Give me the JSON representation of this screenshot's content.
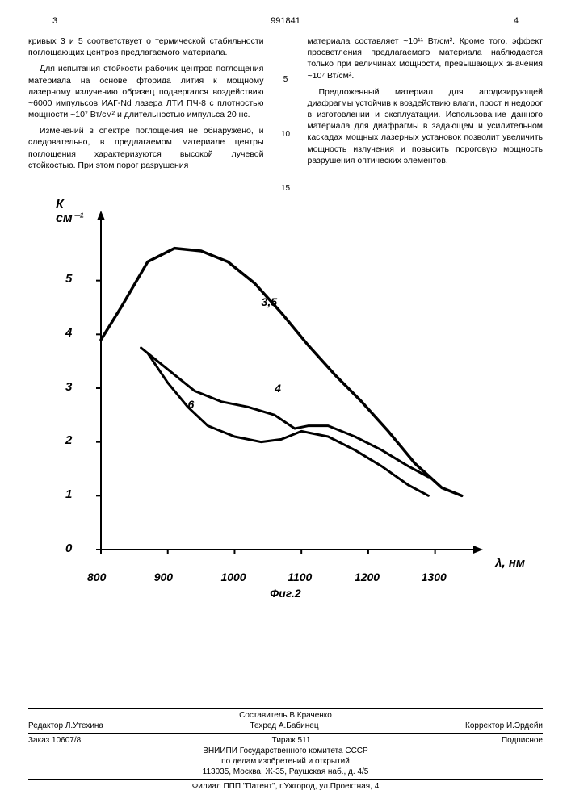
{
  "header": {
    "page_left": "3",
    "doc_num": "991841",
    "page_right": "4"
  },
  "left_col": {
    "p1": "кривых 3 и 5 соответствует о термической стабильности поглощающих центров предлагаемого материала.",
    "p2": "Для испытания стойкости рабочих центров поглощения материала на основе фторида лития к мощному лазерному излучению образец подвергался воздействию ~6000 импульсов ИАГ-Nd лазера ЛТИ ПЧ-8 с плотностью мощности ~10⁷ Вт/см² и длительностью импульса 20 нс.",
    "p3": "Изменений в спектре поглощения не обнаружено, и следовательно, в предлагаемом материале центры поглощения характеризуются высокой лучевой стойкостью. При этом порог разрушения"
  },
  "right_col": {
    "p1": "материала составляет ~10¹¹ Вт/см². Кроме того, эффект просветления предлагаемого материала наблюдается только при величинах мощности, превышающих значения ~10⁷ Вт/см².",
    "p2": "Предложенный материал для аподизирующей диафрагмы устойчив к воздействию влаги, прост и недорог в изготовлении и эксплуатации. Использование данного материала для диафрагмы в задающем и усилительном каскадах мощных лазерных установок позволит увеличить мощность излучения и повысить пороговую мощность разрушения оптических элементов."
  },
  "line_nums": [
    "5",
    "10",
    "15"
  ],
  "chart": {
    "type": "line",
    "xlim": [
      800,
      1350
    ],
    "ylim": [
      0,
      6
    ],
    "xticks": [
      800,
      900,
      1000,
      1100,
      1200,
      1300
    ],
    "yticks": [
      0,
      1,
      2,
      3,
      4,
      5
    ],
    "ylabel_top": "К",
    "ylabel_bot": "см⁻¹",
    "xlabel": "λ, нм",
    "caption": "Фиг.2",
    "line_color": "#000000",
    "line_width_main": 3.5,
    "line_width_sub": 3,
    "background_color": "#ffffff",
    "series": [
      {
        "label": "3,5",
        "label_x": 1040,
        "label_y": 4.6,
        "points": [
          [
            800,
            3.9
          ],
          [
            830,
            4.5
          ],
          [
            870,
            5.35
          ],
          [
            910,
            5.6
          ],
          [
            950,
            5.55
          ],
          [
            990,
            5.35
          ],
          [
            1030,
            4.95
          ],
          [
            1070,
            4.4
          ],
          [
            1110,
            3.8
          ],
          [
            1150,
            3.25
          ],
          [
            1190,
            2.75
          ],
          [
            1230,
            2.2
          ],
          [
            1270,
            1.6
          ],
          [
            1310,
            1.15
          ],
          [
            1340,
            1.0
          ]
        ]
      },
      {
        "label": "4",
        "label_x": 1060,
        "label_y": 3.0,
        "points": [
          [
            860,
            3.75
          ],
          [
            900,
            3.35
          ],
          [
            940,
            2.95
          ],
          [
            980,
            2.75
          ],
          [
            1020,
            2.65
          ],
          [
            1060,
            2.5
          ],
          [
            1090,
            2.25
          ],
          [
            1110,
            2.3
          ],
          [
            1140,
            2.3
          ],
          [
            1180,
            2.1
          ],
          [
            1220,
            1.85
          ],
          [
            1260,
            1.55
          ],
          [
            1290,
            1.35
          ]
        ]
      },
      {
        "label": "6",
        "label_x": 930,
        "label_y": 2.7,
        "points": [
          [
            870,
            3.65
          ],
          [
            900,
            3.1
          ],
          [
            930,
            2.65
          ],
          [
            960,
            2.3
          ],
          [
            1000,
            2.1
          ],
          [
            1040,
            2.0
          ],
          [
            1070,
            2.05
          ],
          [
            1100,
            2.2
          ],
          [
            1140,
            2.1
          ],
          [
            1180,
            1.85
          ],
          [
            1220,
            1.55
          ],
          [
            1260,
            1.2
          ],
          [
            1290,
            1.0
          ]
        ]
      }
    ]
  },
  "footer": {
    "compiler": "Составитель В.Краченко",
    "editor": "Редактор Л.Утехина",
    "tech": "Техред А.Бабинец",
    "corrector": "Корректор И.Эрдейи",
    "order": "Заказ 10607/8",
    "print": "Тираж 511",
    "sign": "Подписное",
    "org1": "ВНИИПИ Государственного комитета СССР",
    "org2": "по делам изобретений и открытий",
    "addr1": "113035, Москва, Ж-35, Раушская наб., д. 4/5",
    "addr2": "Филиал ППП \"Патент\", г.Ужгород, ул.Проектная, 4"
  }
}
